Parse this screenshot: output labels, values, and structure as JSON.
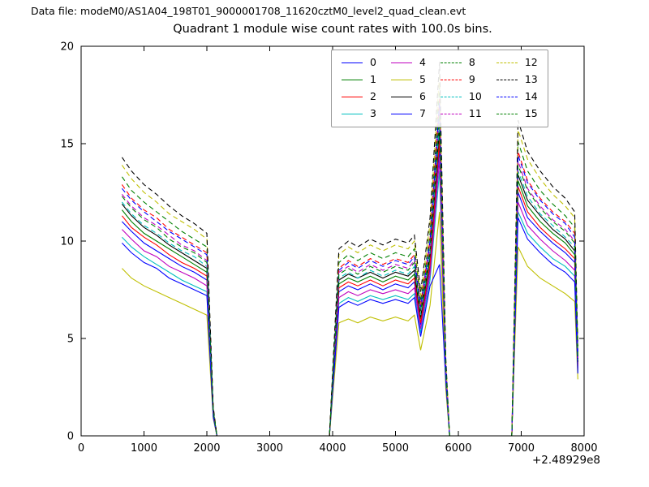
{
  "header": {
    "text": "Data file: modeM0/AS1A04_198T01_9000001708_11620cztM0_level2_quad_clean.evt"
  },
  "chart_data": {
    "type": "line",
    "title": "Quadrant 1 module wise count rates with 100.0s bins.",
    "xlabel": "",
    "ylabel": "",
    "x_offset_label": "+2.48929e8",
    "xlim": [
      0,
      8000
    ],
    "ylim": [
      0,
      20
    ],
    "xticks": [
      0,
      1000,
      2000,
      3000,
      4000,
      5000,
      6000,
      7000,
      8000
    ],
    "yticks": [
      0,
      5,
      10,
      15,
      20
    ],
    "grid": false,
    "legend_position": "upper center",
    "x": [
      650,
      800,
      1000,
      1200,
      1400,
      1600,
      1800,
      2000,
      2100,
      2160,
      3950,
      4020,
      4100,
      4250,
      4400,
      4600,
      4800,
      5000,
      5200,
      5300,
      5400,
      5550,
      5700,
      5800,
      5860,
      6850,
      6950,
      7100,
      7300,
      7500,
      7700,
      7850,
      7900
    ],
    "series": [
      {
        "name": "0",
        "color": "#0000ff",
        "dash": "solid",
        "values": [
          11.0,
          10.5,
          9.9,
          9.5,
          9.1,
          8.7,
          8.4,
          8.0,
          1.2,
          0,
          0,
          3.5,
          7.4,
          7.7,
          7.5,
          7.8,
          7.5,
          7.8,
          7.6,
          7.9,
          5.7,
          8.6,
          14.8,
          3.1,
          0,
          0,
          12.5,
          11.2,
          10.5,
          9.9,
          9.4,
          8.9,
          3.5
        ]
      },
      {
        "name": "1",
        "color": "#008000",
        "dash": "solid",
        "values": [
          11.6,
          11.0,
          10.4,
          10.0,
          9.6,
          9.2,
          8.8,
          8.4,
          1.2,
          0,
          0,
          3.6,
          7.8,
          8.1,
          7.9,
          8.2,
          7.9,
          8.2,
          8.0,
          8.3,
          6.0,
          9.1,
          15.6,
          3.2,
          0,
          0,
          13.1,
          11.8,
          11.0,
          10.4,
          9.9,
          9.3,
          3.7
        ]
      },
      {
        "name": "2",
        "color": "#ff0000",
        "dash": "solid",
        "values": [
          11.3,
          10.7,
          10.2,
          9.8,
          9.3,
          8.9,
          8.6,
          8.2,
          1.2,
          0,
          0,
          3.6,
          7.6,
          7.9,
          7.7,
          8.0,
          7.7,
          8.0,
          7.8,
          8.1,
          5.8,
          8.8,
          15.2,
          3.2,
          0,
          0,
          12.8,
          11.5,
          10.7,
          10.1,
          9.6,
          9.1,
          3.6
        ]
      },
      {
        "name": "3",
        "color": "#00bfbf",
        "dash": "solid",
        "values": [
          10.2,
          9.7,
          9.2,
          8.8,
          8.4,
          8.0,
          7.7,
          7.4,
          1.1,
          0,
          0,
          3.2,
          6.8,
          7.1,
          6.9,
          7.2,
          7.0,
          7.2,
          7.0,
          7.3,
          5.3,
          8.0,
          13.6,
          2.8,
          0,
          0,
          11.5,
          10.4,
          9.7,
          9.1,
          8.7,
          8.2,
          3.3
        ]
      },
      {
        "name": "4",
        "color": "#bf00bf",
        "dash": "solid",
        "values": [
          10.6,
          10.1,
          9.5,
          9.2,
          8.7,
          8.4,
          8.1,
          7.7,
          1.1,
          0,
          0,
          3.3,
          7.1,
          7.4,
          7.2,
          7.5,
          7.3,
          7.5,
          7.3,
          7.6,
          5.5,
          8.3,
          14.2,
          3.0,
          0,
          0,
          12.0,
          10.8,
          10.1,
          9.5,
          9.0,
          8.5,
          3.4
        ]
      },
      {
        "name": "5",
        "color": "#bfbf00",
        "dash": "solid",
        "values": [
          8.6,
          8.1,
          7.7,
          7.4,
          7.1,
          6.8,
          6.5,
          6.2,
          0.9,
          0,
          0,
          2.7,
          5.8,
          6.0,
          5.8,
          6.1,
          5.9,
          6.1,
          5.9,
          6.2,
          4.4,
          6.7,
          11.5,
          2.4,
          0,
          0,
          9.7,
          8.7,
          8.1,
          7.7,
          7.3,
          6.9,
          2.9
        ]
      },
      {
        "name": "6",
        "color": "#000000",
        "dash": "solid",
        "values": [
          11.9,
          11.3,
          10.7,
          10.3,
          9.8,
          9.4,
          9.0,
          8.6,
          1.2,
          0,
          0,
          3.7,
          8.0,
          8.3,
          8.1,
          8.4,
          8.1,
          8.4,
          8.2,
          8.5,
          6.1,
          9.3,
          15.9,
          3.3,
          0,
          0,
          13.4,
          12.1,
          11.3,
          10.6,
          10.1,
          9.5,
          3.8
        ]
      },
      {
        "name": "7",
        "color": "#0000ff",
        "dash": "solid",
        "values": [
          9.9,
          9.4,
          8.9,
          8.6,
          8.1,
          7.8,
          7.5,
          7.2,
          1.0,
          0,
          0,
          3.1,
          6.6,
          6.9,
          6.7,
          7.0,
          6.8,
          7.0,
          6.8,
          7.1,
          5.1,
          7.7,
          8.8,
          2.8,
          0,
          0,
          11.2,
          10.1,
          9.4,
          8.8,
          8.4,
          7.9,
          3.2
        ]
      },
      {
        "name": "8",
        "color": "#008000",
        "dash": "dashed",
        "values": [
          13.3,
          12.6,
          12.0,
          11.5,
          11.0,
          10.5,
          10.1,
          9.7,
          1.4,
          0,
          0,
          4.2,
          8.9,
          9.3,
          9.0,
          9.4,
          9.1,
          9.4,
          9.2,
          9.6,
          6.9,
          10.4,
          17.9,
          3.7,
          0,
          0,
          15.1,
          13.6,
          12.6,
          11.9,
          11.3,
          10.7,
          4.3
        ]
      },
      {
        "name": "9",
        "color": "#ff0000",
        "dash": "dashed",
        "values": [
          12.9,
          12.2,
          11.6,
          11.2,
          10.6,
          10.2,
          9.8,
          9.4,
          1.4,
          0,
          0,
          4.1,
          8.6,
          9.0,
          8.7,
          9.1,
          8.8,
          9.1,
          8.9,
          9.3,
          6.7,
          10.1,
          17.3,
          3.6,
          0,
          0,
          14.6,
          13.1,
          12.2,
          11.5,
          11.0,
          10.4,
          4.1
        ]
      },
      {
        "name": "10",
        "color": "#00bfbf",
        "dash": "dashed",
        "values": [
          12.0,
          11.4,
          10.8,
          10.4,
          9.9,
          9.5,
          9.2,
          8.7,
          1.3,
          0,
          0,
          3.8,
          8.1,
          8.4,
          8.1,
          8.5,
          8.2,
          8.5,
          8.3,
          8.7,
          6.2,
          9.4,
          16.1,
          3.4,
          0,
          0,
          13.6,
          12.3,
          11.4,
          10.8,
          10.2,
          9.7,
          3.9
        ]
      },
      {
        "name": "11",
        "color": "#bf00bf",
        "dash": "dashed",
        "values": [
          12.4,
          11.8,
          11.2,
          10.8,
          10.3,
          9.8,
          9.5,
          9.0,
          1.3,
          0,
          0,
          3.9,
          8.4,
          8.7,
          8.4,
          8.8,
          8.5,
          8.8,
          8.6,
          9.0,
          6.4,
          9.7,
          16.7,
          3.5,
          0,
          0,
          14.1,
          12.7,
          11.8,
          11.1,
          10.6,
          10.0,
          4.0
        ]
      },
      {
        "name": "12",
        "color": "#bfbf00",
        "dash": "dashed",
        "values": [
          13.9,
          13.2,
          12.5,
          12.0,
          11.4,
          11.0,
          10.6,
          10.1,
          1.5,
          0,
          0,
          4.4,
          9.3,
          9.7,
          9.4,
          9.8,
          9.5,
          9.8,
          9.6,
          10.0,
          7.2,
          10.9,
          18.6,
          3.9,
          0,
          0,
          15.7,
          14.2,
          13.2,
          12.4,
          11.8,
          11.2,
          4.5
        ]
      },
      {
        "name": "13",
        "color": "#000000",
        "dash": "dashed",
        "values": [
          14.3,
          13.6,
          12.9,
          12.4,
          11.8,
          11.3,
          10.9,
          10.4,
          1.5,
          0,
          0,
          4.5,
          9.6,
          10.0,
          9.7,
          10.1,
          9.8,
          10.1,
          9.9,
          10.3,
          7.4,
          11.2,
          19.2,
          4.0,
          0,
          0,
          16.2,
          14.6,
          13.6,
          12.8,
          12.2,
          11.5,
          4.6
        ]
      },
      {
        "name": "14",
        "color": "#0000ff",
        "dash": "dashed",
        "values": [
          12.7,
          12.1,
          11.5,
          11.0,
          10.5,
          10.1,
          9.7,
          9.3,
          1.3,
          0,
          0,
          4.0,
          8.5,
          8.9,
          8.6,
          9.0,
          8.7,
          9.0,
          8.8,
          9.2,
          6.6,
          10.0,
          17.1,
          3.6,
          0,
          0,
          14.4,
          13.0,
          12.1,
          11.4,
          10.9,
          10.2,
          4.1
        ]
      },
      {
        "name": "15",
        "color": "#008000",
        "dash": "dashed",
        "values": [
          12.3,
          11.7,
          11.1,
          10.7,
          10.1,
          9.7,
          9.4,
          8.9,
          1.3,
          0,
          0,
          3.9,
          8.3,
          8.6,
          8.3,
          8.7,
          8.4,
          8.7,
          8.5,
          8.9,
          6.4,
          9.6,
          16.5,
          3.4,
          0,
          0,
          13.9,
          12.6,
          11.7,
          11.0,
          10.5,
          9.9,
          4.0
        ]
      }
    ]
  }
}
